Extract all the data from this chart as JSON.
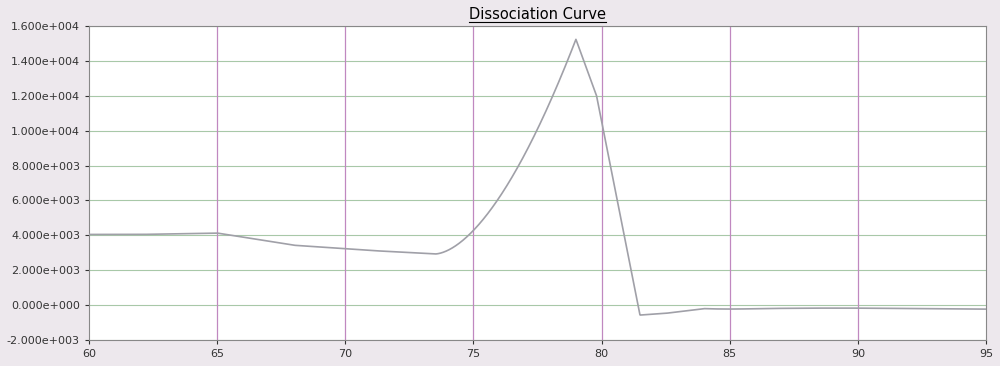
{
  "title": "Dissociation Curve",
  "xlim": [
    60,
    95
  ],
  "ylim": [
    -2000,
    16000
  ],
  "xticks": [
    60,
    65,
    70,
    75,
    80,
    85,
    90,
    95
  ],
  "yticks": [
    -2000,
    0,
    2000,
    4000,
    6000,
    8000,
    10000,
    12000,
    14000,
    16000
  ],
  "vlines": [
    65,
    70,
    75,
    80,
    85,
    90
  ],
  "vline_color": "#c088c0",
  "hline_color": "#a8c8a8",
  "background_color": "#ede8ed",
  "plot_bg_color": "#ffffff",
  "line_color": "#a0a0a8",
  "title_color": "#000000",
  "title_fontsize": 10.5
}
